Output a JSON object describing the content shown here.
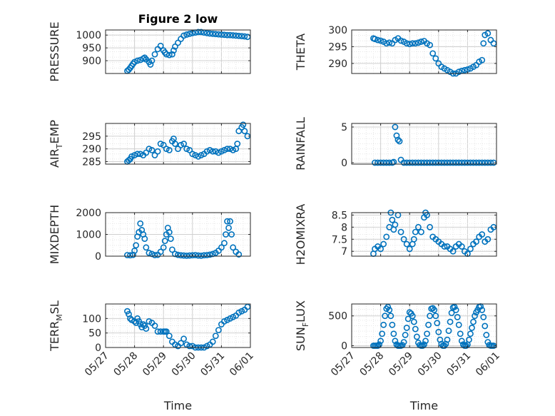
{
  "figure": {
    "title": "Figure 2 low"
  },
  "chart_data": [
    {
      "type": "scatter",
      "title": "Figure 2 low",
      "ylabel": "PRESSURE",
      "xlabel": "",
      "xlim": [
        "05/27",
        "06/01"
      ],
      "ylim": [
        850,
        1020
      ],
      "yticks": [
        "900",
        "950",
        "1000"
      ],
      "xticks": [
        "05/27",
        "05/28",
        "05/29",
        "05/30",
        "05/31",
        "06/01"
      ],
      "grid": true,
      "series": [
        {
          "x": [
            27.75,
            27.8,
            27.85,
            27.9,
            27.95,
            28.0,
            28.1,
            28.2,
            28.3,
            28.35,
            28.4,
            28.5,
            28.55,
            28.6,
            28.7,
            28.8,
            28.9,
            29.0,
            29.05,
            29.1,
            29.2,
            29.3,
            29.35,
            29.4,
            29.5,
            29.6,
            29.7,
            29.8,
            29.9,
            30.0,
            30.1,
            30.2,
            30.3,
            30.4,
            30.5,
            30.6,
            30.7,
            30.8,
            30.9,
            31.0,
            31.1,
            31.2,
            31.3,
            31.4,
            31.5,
            31.6,
            31.7,
            31.8,
            31.9
          ],
          "y": [
            860,
            865,
            872,
            880,
            888,
            895,
            900,
            903,
            908,
            912,
            905,
            895,
            885,
            900,
            925,
            945,
            958,
            940,
            932,
            925,
            922,
            925,
            940,
            955,
            970,
            985,
            998,
            1002,
            1005,
            1008,
            1010,
            1012,
            1012,
            1010,
            1008,
            1006,
            1005,
            1004,
            1003,
            1002,
            1001,
            1000,
            1000,
            999,
            998,
            997,
            996,
            995,
            993
          ]
        }
      ]
    },
    {
      "type": "scatter",
      "ylabel": "THETA",
      "xlabel": "",
      "xlim": [
        "05/27",
        "06/01"
      ],
      "ylim": [
        287,
        300
      ],
      "yticks": [
        "290",
        "295",
        "300"
      ],
      "xticks": [
        "05/27",
        "05/28",
        "05/29",
        "05/30",
        "05/31",
        "06/01"
      ],
      "grid": true,
      "series": [
        {
          "x": [
            27.75,
            27.8,
            27.9,
            28.0,
            28.1,
            28.2,
            28.3,
            28.4,
            28.5,
            28.6,
            28.7,
            28.8,
            28.9,
            29.0,
            29.1,
            29.2,
            29.3,
            29.4,
            29.5,
            29.6,
            29.7,
            29.8,
            29.9,
            30.0,
            30.1,
            30.2,
            30.3,
            30.4,
            30.5,
            30.6,
            30.7,
            30.8,
            30.9,
            31.0,
            31.1,
            31.2,
            31.3,
            31.4,
            31.5,
            31.55,
            31.6,
            31.7,
            31.8,
            31.9
          ],
          "y": [
            297.5,
            297.3,
            297.0,
            296.8,
            296.5,
            296.0,
            296.2,
            296.0,
            297.0,
            297.5,
            296.8,
            296.5,
            296.0,
            295.8,
            296.0,
            296.0,
            296.2,
            296.5,
            296.7,
            296.0,
            295.5,
            293.0,
            291.5,
            290.0,
            289.0,
            288.5,
            288.0,
            287.5,
            287.0,
            287.0,
            287.5,
            287.8,
            288.0,
            288.2,
            288.5,
            289.0,
            289.5,
            290.5,
            291.0,
            296.0,
            298.5,
            299.0,
            297.0,
            296.0
          ]
        }
      ]
    },
    {
      "type": "scatter",
      "ylabel": "AIR_TEMP",
      "xlabel": "",
      "xlim": [
        "05/27",
        "06/01"
      ],
      "ylim": [
        284,
        300
      ],
      "yticks": [
        "285",
        "290",
        "295"
      ],
      "xticks": [
        "05/27",
        "05/28",
        "05/29",
        "05/30",
        "05/31",
        "06/01"
      ],
      "grid": true,
      "series": [
        {
          "x": [
            27.75,
            27.8,
            27.85,
            27.9,
            28.0,
            28.1,
            28.2,
            28.3,
            28.4,
            28.5,
            28.6,
            28.7,
            28.8,
            28.9,
            29.0,
            29.1,
            29.2,
            29.3,
            29.35,
            29.4,
            29.5,
            29.6,
            29.7,
            29.8,
            29.9,
            30.0,
            30.1,
            30.2,
            30.3,
            30.4,
            30.5,
            30.6,
            30.7,
            30.8,
            30.9,
            31.0,
            31.1,
            31.2,
            31.3,
            31.4,
            31.5,
            31.55,
            31.6,
            31.7,
            31.75,
            31.8,
            31.9
          ],
          "y": [
            285,
            285.5,
            286,
            287,
            287.5,
            288,
            288,
            287.5,
            288.5,
            290,
            289.5,
            287.5,
            289,
            292,
            291.5,
            290,
            289.5,
            293,
            294,
            292,
            290,
            291.5,
            292,
            290,
            289.5,
            288,
            287.5,
            287,
            287.5,
            288,
            289,
            289.5,
            289,
            289,
            288.5,
            289,
            289.5,
            290,
            290,
            289.5,
            290,
            292,
            297,
            298.5,
            299.5,
            297,
            295
          ]
        }
      ]
    },
    {
      "type": "scatter",
      "ylabel": "RAINFALL",
      "xlabel": "",
      "xlim": [
        "05/27",
        "06/01"
      ],
      "ylim": [
        -0.2,
        5.5
      ],
      "yticks": [
        "0",
        "5"
      ],
      "xticks": [
        "05/27",
        "05/28",
        "05/29",
        "05/30",
        "05/31",
        "06/01"
      ],
      "grid": true,
      "series": [
        {
          "x": [
            27.8,
            27.9,
            28.0,
            28.1,
            28.2,
            28.3,
            28.4,
            28.45,
            28.5,
            28.55,
            28.6,
            28.65,
            28.7,
            28.8,
            28.9,
            29.0,
            29.1,
            29.2,
            29.3,
            29.4,
            29.5,
            29.6,
            29.7,
            29.8,
            29.9,
            30.0,
            30.1,
            30.2,
            30.3,
            30.4,
            30.5,
            30.6,
            30.7,
            30.8,
            30.9,
            31.0,
            31.1,
            31.2,
            31.3,
            31.4,
            31.5,
            31.6,
            31.7,
            31.8,
            31.9
          ],
          "y": [
            0,
            0,
            0,
            0,
            0,
            0,
            0,
            0.1,
            5.0,
            3.8,
            3.2,
            3.0,
            0.4,
            0,
            0,
            0,
            0,
            0,
            0,
            0,
            0,
            0,
            0,
            0,
            0,
            0,
            0,
            0,
            0,
            0,
            0,
            0,
            0,
            0,
            0,
            0,
            0,
            0,
            0,
            0,
            0,
            0,
            0,
            0,
            0
          ]
        }
      ]
    },
    {
      "type": "scatter",
      "ylabel": "MIXDEPTH",
      "xlabel": "",
      "xlim": [
        "05/27",
        "06/01"
      ],
      "ylim": [
        0,
        2000
      ],
      "yticks": [
        "0",
        "1000",
        "2000"
      ],
      "xticks": [
        "05/27",
        "05/28",
        "05/29",
        "05/30",
        "05/31",
        "06/01"
      ],
      "grid": true,
      "series": [
        {
          "x": [
            27.75,
            27.85,
            27.95,
            28.0,
            28.05,
            28.1,
            28.15,
            28.2,
            28.25,
            28.3,
            28.35,
            28.4,
            28.5,
            28.6,
            28.7,
            28.8,
            28.9,
            29.0,
            29.05,
            29.1,
            29.15,
            29.2,
            29.25,
            29.3,
            29.4,
            29.5,
            29.6,
            29.7,
            29.8,
            29.9,
            30.0,
            30.1,
            30.2,
            30.3,
            30.4,
            30.5,
            30.6,
            30.7,
            30.8,
            30.9,
            31.0,
            31.1,
            31.15,
            31.2,
            31.25,
            31.3,
            31.35,
            31.4,
            31.5,
            31.6
          ],
          "y": [
            50,
            40,
            60,
            250,
            500,
            900,
            1100,
            1500,
            1200,
            1000,
            800,
            400,
            150,
            100,
            50,
            60,
            200,
            400,
            700,
            1000,
            1300,
            1100,
            800,
            300,
            100,
            60,
            40,
            30,
            20,
            30,
            40,
            50,
            30,
            20,
            40,
            50,
            70,
            100,
            150,
            250,
            400,
            600,
            1000,
            1600,
            1300,
            1600,
            1000,
            400,
            200,
            80
          ]
        }
      ]
    },
    {
      "type": "scatter",
      "ylabel": "H2OMIXRA",
      "xlabel": "",
      "xlim": [
        "05/27",
        "06/01"
      ],
      "ylim": [
        6.8,
        8.6
      ],
      "yticks": [
        "7",
        "7.5",
        "8",
        "8.5"
      ],
      "xticks": [
        "05/27",
        "05/28",
        "05/29",
        "05/30",
        "05/31",
        "06/01"
      ],
      "grid": true,
      "series": [
        {
          "x": [
            27.75,
            27.8,
            27.9,
            28.0,
            28.1,
            28.2,
            28.3,
            28.35,
            28.4,
            28.45,
            28.5,
            28.6,
            28.7,
            28.8,
            28.9,
            29.0,
            29.1,
            29.15,
            29.2,
            29.3,
            29.4,
            29.5,
            29.55,
            29.6,
            29.7,
            29.8,
            29.9,
            30.0,
            30.1,
            30.2,
            30.3,
            30.4,
            30.5,
            30.6,
            30.7,
            30.8,
            30.9,
            31.0,
            31.1,
            31.2,
            31.3,
            31.4,
            31.5,
            31.6,
            31.7,
            31.8,
            31.9
          ],
          "y": [
            6.9,
            7.1,
            7.2,
            7.1,
            7.3,
            7.6,
            8.0,
            8.6,
            8.3,
            7.9,
            8.1,
            8.5,
            7.8,
            7.5,
            7.3,
            7.1,
            7.3,
            7.5,
            7.8,
            8.0,
            7.8,
            8.4,
            8.6,
            8.5,
            8.0,
            7.6,
            7.5,
            7.4,
            7.3,
            7.2,
            7.2,
            7.1,
            7.0,
            7.2,
            7.3,
            7.2,
            7.0,
            6.9,
            7.1,
            7.3,
            7.4,
            7.6,
            7.7,
            7.4,
            7.5,
            7.9,
            8.0
          ]
        }
      ]
    },
    {
      "type": "scatter",
      "ylabel": "TERR_MSL",
      "xlabel": "Time",
      "xlim": [
        "05/27",
        "06/01"
      ],
      "ylim": [
        0,
        150
      ],
      "yticks": [
        "0",
        "50",
        "100"
      ],
      "xticks": [
        "05/27",
        "05/28",
        "05/29",
        "05/30",
        "05/31",
        "06/01"
      ],
      "grid": true,
      "series": [
        {
          "x": [
            27.75,
            27.8,
            27.85,
            27.9,
            28.0,
            28.05,
            28.1,
            28.15,
            28.2,
            28.25,
            28.3,
            28.35,
            28.4,
            28.5,
            28.6,
            28.7,
            28.8,
            28.9,
            29.0,
            29.05,
            29.1,
            29.2,
            29.3,
            29.4,
            29.5,
            29.6,
            29.7,
            29.8,
            29.9,
            30.0,
            30.1,
            30.2,
            30.3,
            30.4,
            30.5,
            30.6,
            30.7,
            30.8,
            30.9,
            31.0,
            31.1,
            31.2,
            31.3,
            31.4,
            31.5,
            31.6,
            31.7,
            31.8,
            31.9
          ],
          "y": [
            125,
            115,
            100,
            95,
            90,
            85,
            100,
            90,
            80,
            70,
            80,
            75,
            65,
            90,
            85,
            75,
            55,
            55,
            55,
            55,
            55,
            40,
            20,
            10,
            5,
            15,
            30,
            10,
            5,
            5,
            0,
            0,
            0,
            0,
            5,
            10,
            20,
            40,
            60,
            80,
            90,
            95,
            100,
            105,
            110,
            120,
            125,
            130,
            140
          ]
        }
      ]
    },
    {
      "type": "scatter",
      "ylabel": "SUN_FLUX",
      "xlabel": "Time",
      "xlim": [
        "05/27",
        "06/01"
      ],
      "ylim": [
        -30,
        700
      ],
      "yticks": [
        "0",
        "500"
      ],
      "xticks": [
        "05/27",
        "05/28",
        "05/29",
        "05/30",
        "05/31",
        "06/01"
      ],
      "grid": true,
      "series": [
        {
          "x": [
            27.75,
            27.8,
            27.85,
            27.9,
            27.95,
            28.0,
            28.05,
            28.1,
            28.15,
            28.2,
            28.25,
            28.3,
            28.35,
            28.4,
            28.45,
            28.5,
            28.55,
            28.6,
            28.65,
            28.7,
            28.75,
            28.8,
            28.85,
            28.9,
            28.95,
            29.0,
            29.05,
            29.1,
            29.15,
            29.2,
            29.25,
            29.3,
            29.35,
            29.4,
            29.45,
            29.5,
            29.55,
            29.6,
            29.65,
            29.7,
            29.75,
            29.8,
            29.85,
            29.9,
            29.95,
            30.0,
            30.05,
            30.1,
            30.15,
            30.2,
            30.25,
            30.3,
            30.35,
            30.4,
            30.45,
            30.5,
            30.55,
            30.6,
            30.65,
            30.7,
            30.75,
            30.8,
            30.85,
            30.9,
            30.95,
            31.0,
            31.05,
            31.1,
            31.15,
            31.2,
            31.25,
            31.3,
            31.35,
            31.4,
            31.45,
            31.5,
            31.55,
            31.6,
            31.65,
            31.7,
            31.75,
            31.8,
            31.85,
            31.9
          ],
          "y": [
            0,
            0,
            0,
            0,
            20,
            80,
            200,
            350,
            500,
            620,
            650,
            600,
            500,
            350,
            200,
            80,
            20,
            0,
            0,
            0,
            10,
            60,
            180,
            300,
            450,
            560,
            540,
            500,
            400,
            280,
            150,
            50,
            10,
            0,
            0,
            20,
            80,
            200,
            350,
            500,
            620,
            630,
            600,
            500,
            380,
            230,
            100,
            30,
            0,
            0,
            30,
            100,
            250,
            400,
            550,
            640,
            650,
            600,
            480,
            350,
            200,
            80,
            20,
            0,
            0,
            20,
            100,
            200,
            300,
            400,
            500,
            560,
            600,
            650,
            660,
            600,
            480,
            330,
            180,
            60,
            10,
            0,
            0,
            0
          ]
        }
      ]
    }
  ]
}
